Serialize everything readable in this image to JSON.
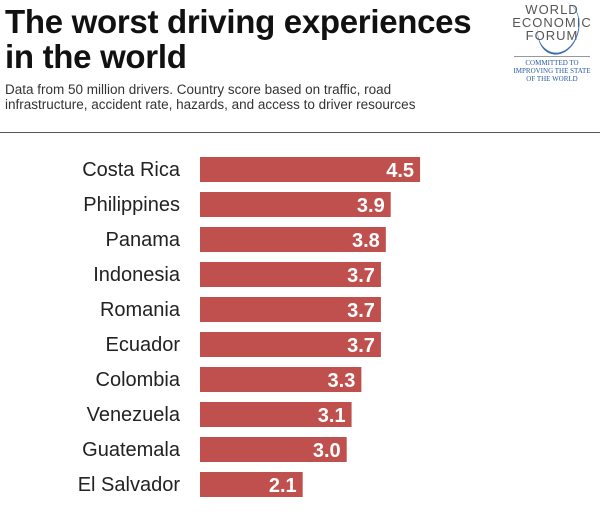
{
  "header": {
    "title": "The worst driving experiences in the world",
    "subtitle": "Data from 50 million drivers. Country score based on traffic, road infrastructure, accident rate, hazards, and access to driver resources"
  },
  "logo": {
    "lines": [
      "WORLD",
      "ECONOMIC",
      "FORUM"
    ],
    "tagline": [
      "COMMITTED TO",
      "IMPROVING THE STATE",
      "OF THE WORLD"
    ]
  },
  "chart_data": {
    "type": "bar",
    "orientation": "horizontal",
    "title": "The worst driving experiences in the world",
    "categories": [
      "Costa Rica",
      "Philippines",
      "Panama",
      "Indonesia",
      "Romania",
      "Ecuador",
      "Colombia",
      "Venezuela",
      "Guatemala",
      "El Salvador"
    ],
    "values": [
      4.5,
      3.9,
      3.8,
      3.7,
      3.7,
      3.7,
      3.3,
      3.1,
      3.0,
      2.1
    ],
    "value_labels": [
      "4.5",
      "3.9",
      "3.8",
      "3.7",
      "3.7",
      "3.7",
      "3.3",
      "3.1",
      "3.0",
      "2.1"
    ],
    "bar_color": "#c0504d",
    "grid": false
  }
}
